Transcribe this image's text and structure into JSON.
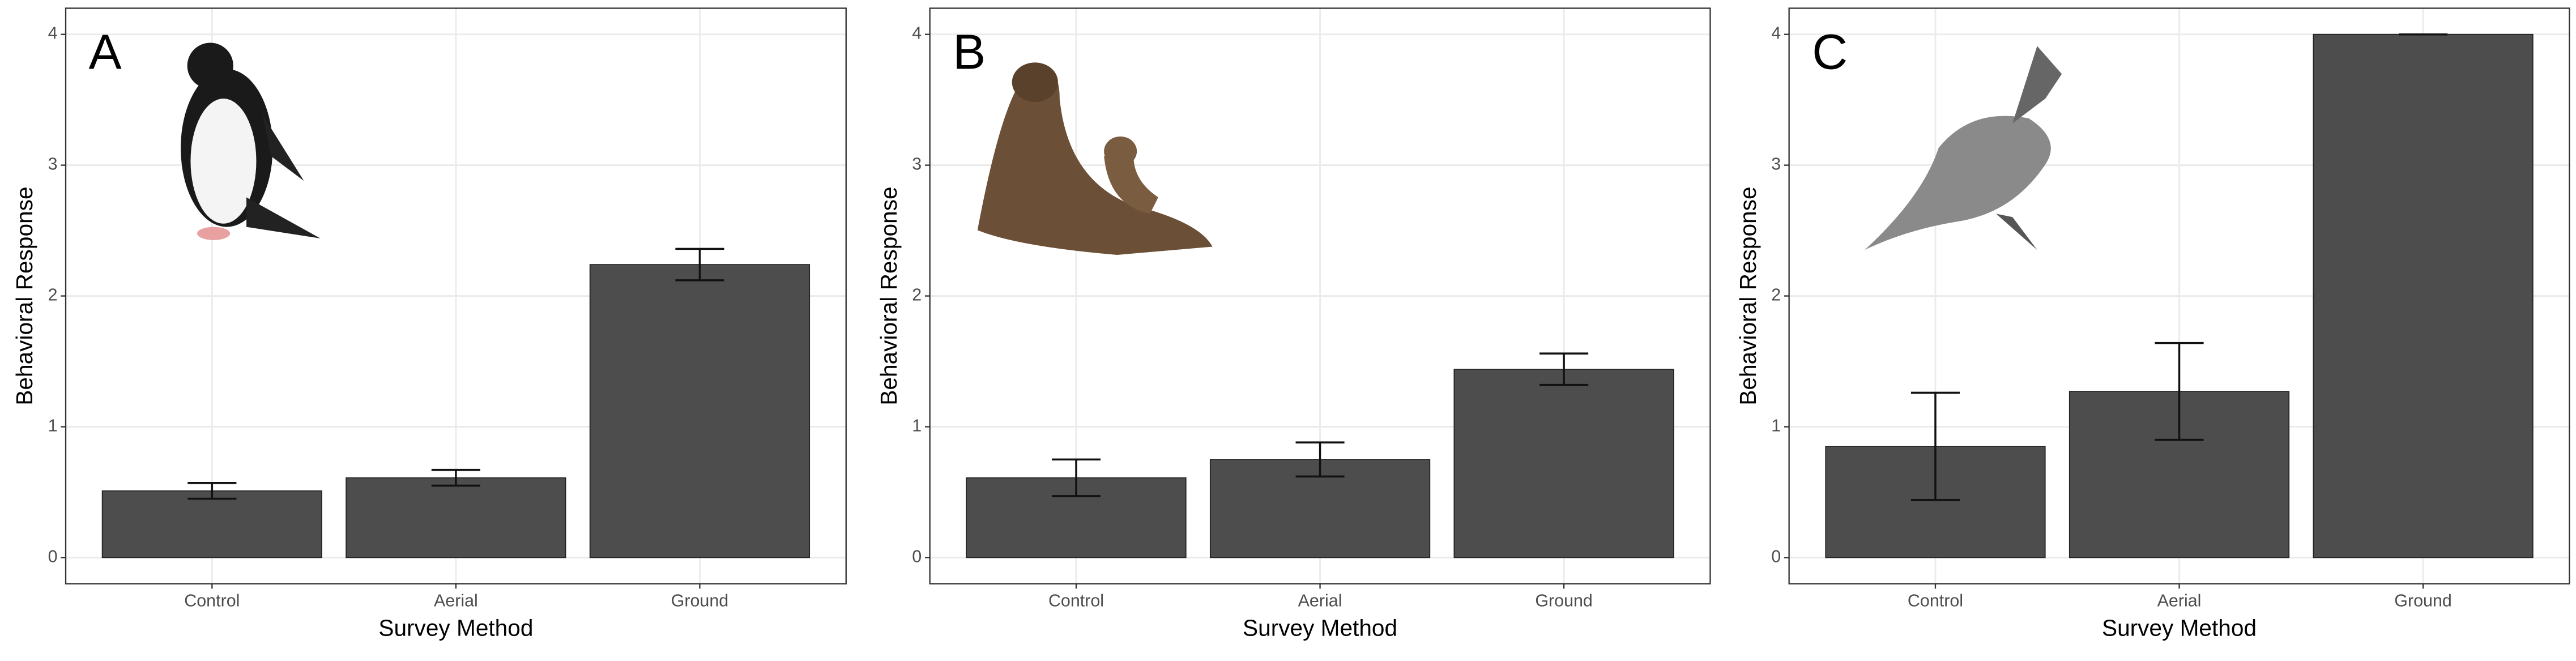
{
  "chart_data": [
    {
      "type": "bar",
      "label": "A",
      "x_label": "Survey Method",
      "y_label": "Behavioral Response",
      "categories": [
        "Control",
        "Aerial",
        "Ground"
      ],
      "values": [
        0.51,
        0.61,
        2.24
      ],
      "errors": [
        0.06,
        0.06,
        0.12
      ],
      "color": "#4d4d4d",
      "ylim": [
        -0.2,
        4.2
      ],
      "yticks": [
        0,
        1,
        2,
        3,
        4
      ],
      "grid": true
    },
    {
      "type": "bar",
      "label": "B",
      "x_label": "Survey Method",
      "y_label": "Behavioral Response",
      "categories": [
        "Control",
        "Aerial",
        "Ground"
      ],
      "values": [
        0.61,
        0.75,
        1.44
      ],
      "errors": [
        0.14,
        0.13,
        0.12
      ],
      "color": "#4d4d4d",
      "ylim": [
        -0.2,
        4.2
      ],
      "yticks": [
        0,
        1,
        2,
        3,
        4
      ],
      "grid": true
    },
    {
      "type": "bar",
      "label": "C",
      "x_label": "Survey Method",
      "y_label": "Behavioral Response",
      "categories": [
        "Control",
        "Aerial",
        "Ground"
      ],
      "values": [
        0.85,
        1.27,
        4.0
      ],
      "errors": [
        0.41,
        0.37,
        0.0
      ],
      "color": "#4d4d4d",
      "ylim": [
        -0.2,
        4.2
      ],
      "yticks": [
        0,
        1,
        2,
        3,
        4
      ],
      "grid": true
    }
  ]
}
